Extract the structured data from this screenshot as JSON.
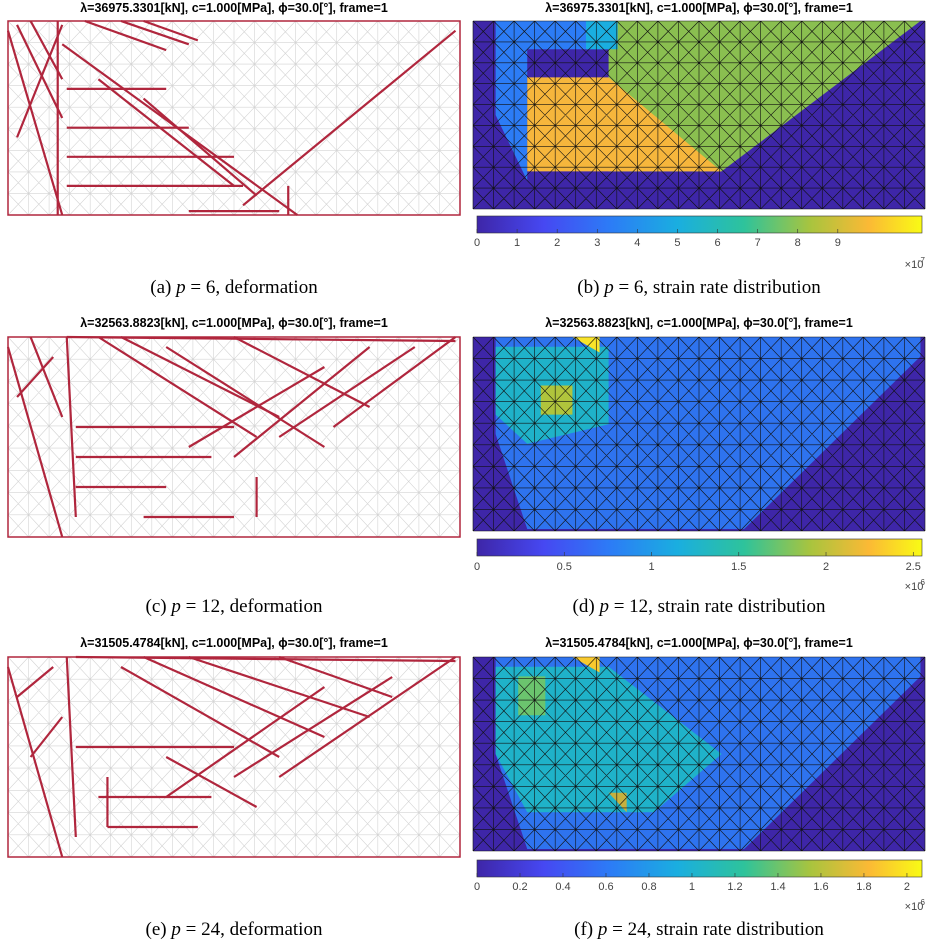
{
  "panels": [
    {
      "title": "λ=36975.3301[kN], c=1.000[MPa], ϕ=30.0[°], frame=1",
      "caption": {
        "label": "(a)",
        "variable": "p",
        "rest": "= 6, deformation"
      }
    },
    {
      "title": "λ=36975.3301[kN], c=1.000[MPa], ϕ=30.0[°], frame=1",
      "caption": {
        "label": "(b)",
        "variable": "p",
        "rest": "= 6, strain rate distribution"
      },
      "colorbar": {
        "clim": [
          0,
          11.1
        ],
        "ticks": [
          0,
          1,
          2,
          3,
          4,
          5,
          6,
          7,
          8,
          9
        ],
        "multiplier": "×10",
        "exponent": "-7"
      }
    },
    {
      "title": "λ=32563.8823[kN], c=1.000[MPa], ϕ=30.0[°], frame=1",
      "caption": {
        "label": "(c)",
        "variable": "p",
        "rest": "= 12, deformation"
      }
    },
    {
      "title": "λ=32563.8823[kN], c=1.000[MPa], ϕ=30.0[°], frame=1",
      "caption": {
        "label": "(d)",
        "variable": "p",
        "rest": "= 12, strain rate distribution"
      },
      "colorbar": {
        "clim": [
          0,
          2.55
        ],
        "ticks": [
          0,
          0.5,
          1,
          1.5,
          2,
          2.5
        ],
        "multiplier": "×10",
        "exponent": "-6"
      }
    },
    {
      "title": "λ=31505.4784[kN], c=1.000[MPa], ϕ=30.0[°], frame=1",
      "caption": {
        "label": "(e)",
        "variable": "p",
        "rest": "= 24, deformation"
      }
    },
    {
      "title": "λ=31505.4784[kN], c=1.000[MPa], ϕ=30.0[°], frame=1",
      "caption": {
        "label": "(f)",
        "variable": "p",
        "rest": "= 24, strain rate distribution"
      },
      "colorbar": {
        "clim": [
          0,
          2.07
        ],
        "ticks": [
          0,
          0.2,
          0.4,
          0.6,
          0.8,
          1,
          1.2,
          1.4,
          1.6,
          1.8,
          2
        ],
        "multiplier": "×10",
        "exponent": "-6"
      }
    }
  ]
}
